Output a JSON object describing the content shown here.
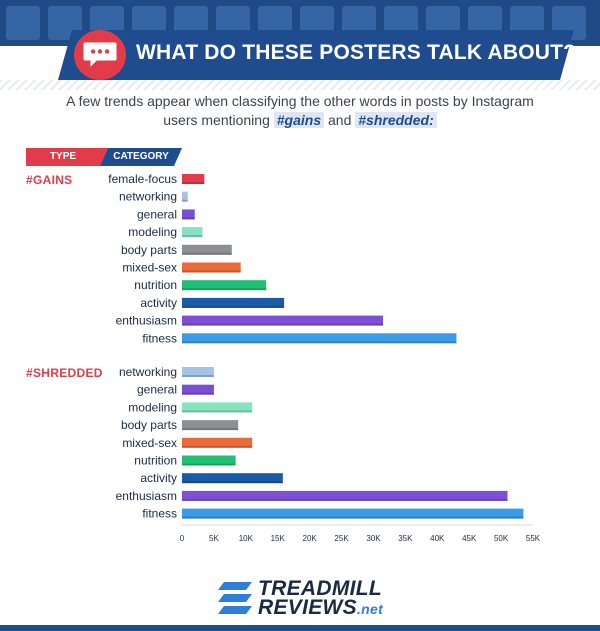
{
  "header": {
    "title": "WHAT DO THESE POSTERS TALK ABOUT?",
    "subtitle_line1": "A few trends appear when classifying the other words in posts by Instagram",
    "subtitle_line2_pre": "users mentioning ",
    "subtitle_tag1": "#gains",
    "subtitle_and": " and ",
    "subtitle_tag2": "#shredded:"
  },
  "legend": {
    "type": "TYPE",
    "category": "CATEGORY"
  },
  "colors": {
    "female-focus": "#e23c4a",
    "networking": "#a3c4e6",
    "general": "#7a4fd6",
    "modeling": "#86e3c0",
    "body parts": "#8d8f94",
    "mixed-sex": "#ec6a3a",
    "nutrition": "#1fbf74",
    "activity": "#1b5aa6",
    "enthusiasm": "#7e4fd8",
    "fitness": "#3b9be6"
  },
  "chart_data": {
    "type": "bar",
    "orientation": "horizontal",
    "xlim": [
      0,
      55000
    ],
    "xticks": [
      "0",
      "5K",
      "10K",
      "15K",
      "20K",
      "25K",
      "30K",
      "35K",
      "40K",
      "45K",
      "50K",
      "55K"
    ],
    "groups": [
      {
        "name": "#GAINS",
        "categories": [
          "female-focus",
          "networking",
          "general",
          "modeling",
          "body parts",
          "mixed-sex",
          "nutrition",
          "activity",
          "enthusiasm",
          "fitness"
        ],
        "values": [
          3500,
          900,
          2000,
          3200,
          7800,
          9200,
          13200,
          16000,
          31500,
          43000
        ]
      },
      {
        "name": "#SHREDDED",
        "categories": [
          "networking",
          "general",
          "modeling",
          "body parts",
          "mixed-sex",
          "nutrition",
          "activity",
          "enthusiasm",
          "fitness"
        ],
        "values": [
          5000,
          5000,
          11000,
          8800,
          11000,
          8400,
          15800,
          51000,
          53500
        ]
      }
    ]
  },
  "logo": {
    "line1": "TREADMILL",
    "line2": "REVIEWS",
    "suffix": ".net"
  }
}
